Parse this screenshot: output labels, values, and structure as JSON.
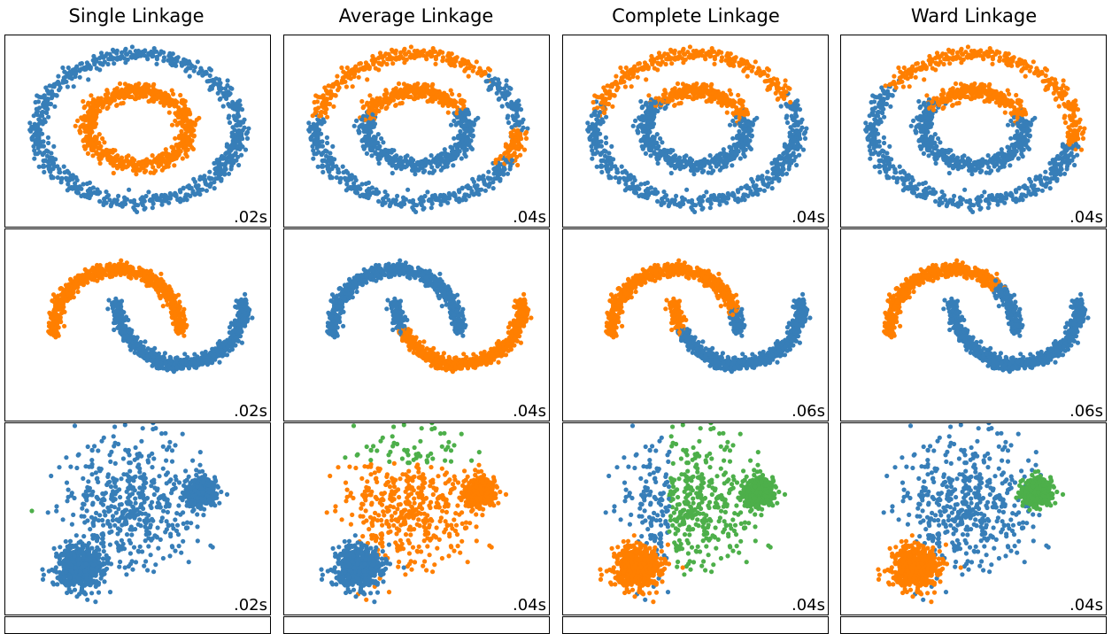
{
  "columns": [
    {
      "title": "Single Linkage"
    },
    {
      "title": "Average Linkage"
    },
    {
      "title": "Complete Linkage"
    },
    {
      "title": "Ward Linkage"
    }
  ],
  "rows": [
    {
      "dataset": "noisy_circles",
      "timings": [
        ".02s",
        ".04s",
        ".04s",
        ".04s"
      ]
    },
    {
      "dataset": "noisy_moons",
      "timings": [
        ".02s",
        ".04s",
        ".06s",
        ".06s"
      ]
    },
    {
      "dataset": "varied_blobs",
      "timings": [
        ".02s",
        ".04s",
        ".04s",
        ".04s"
      ]
    }
  ],
  "colors": {
    "blue": "#377eb8",
    "orange": "#ff7f00",
    "green": "#4daf4a"
  },
  "chart_data": [
    {
      "type": "scatter",
      "panel": "circles-single",
      "series": [
        {
          "color": "blue",
          "points": "outer circle"
        },
        {
          "color": "orange",
          "points": "inner circle"
        }
      ]
    },
    {
      "type": "scatter",
      "panel": "circles-average",
      "series": [
        {
          "color": "orange",
          "points": "upper-right arc of outer circle + upper arc of inner circle"
        },
        {
          "color": "blue",
          "points": "rest"
        }
      ]
    },
    {
      "type": "scatter",
      "panel": "circles-complete",
      "series": [
        {
          "color": "orange",
          "points": "upper arcs"
        },
        {
          "color": "blue",
          "points": "rest"
        }
      ]
    },
    {
      "type": "scatter",
      "panel": "circles-ward",
      "series": [
        {
          "color": "orange",
          "points": "upper arcs"
        },
        {
          "color": "blue",
          "points": "rest"
        }
      ]
    },
    {
      "type": "scatter",
      "panel": "moons-single",
      "series": [
        {
          "color": "orange",
          "points": "upper moon"
        },
        {
          "color": "blue",
          "points": "lower moon"
        }
      ]
    },
    {
      "type": "scatter",
      "panel": "moons-average",
      "series": [
        {
          "color": "blue",
          "points": "upper moon + left tip of lower moon"
        },
        {
          "color": "orange",
          "points": "most of lower moon"
        }
      ]
    },
    {
      "type": "scatter",
      "panel": "moons-complete",
      "series": [
        {
          "color": "orange",
          "points": "upper moon + left tip of lower moon"
        },
        {
          "color": "blue",
          "points": "most of lower moon + right end of upper moon"
        }
      ]
    },
    {
      "type": "scatter",
      "panel": "moons-ward",
      "series": [
        {
          "color": "orange",
          "points": "upper moon (most)"
        },
        {
          "color": "blue",
          "points": "lower moon + right end of upper moon"
        }
      ]
    },
    {
      "type": "scatter",
      "panel": "blobs-single",
      "series": [
        {
          "color": "blue",
          "points": "all three blobs"
        },
        {
          "color": "green",
          "points": "single outlier"
        }
      ]
    },
    {
      "type": "scatter",
      "panel": "blobs-average",
      "series": [
        {
          "color": "orange",
          "points": "wide blob + right blob"
        },
        {
          "color": "blue",
          "points": "lower-left blob"
        },
        {
          "color": "green",
          "points": "top of wide blob"
        }
      ]
    },
    {
      "type": "scatter",
      "panel": "blobs-complete",
      "series": [
        {
          "color": "green",
          "points": "right part of wide blob + right blob"
        },
        {
          "color": "blue",
          "points": "left part of wide blob"
        },
        {
          "color": "orange",
          "points": "lower-left blob"
        }
      ]
    },
    {
      "type": "scatter",
      "panel": "blobs-ward",
      "series": [
        {
          "color": "blue",
          "points": "wide blob"
        },
        {
          "color": "green",
          "points": "right blob"
        },
        {
          "color": "orange",
          "points": "lower-left blob"
        }
      ]
    }
  ]
}
